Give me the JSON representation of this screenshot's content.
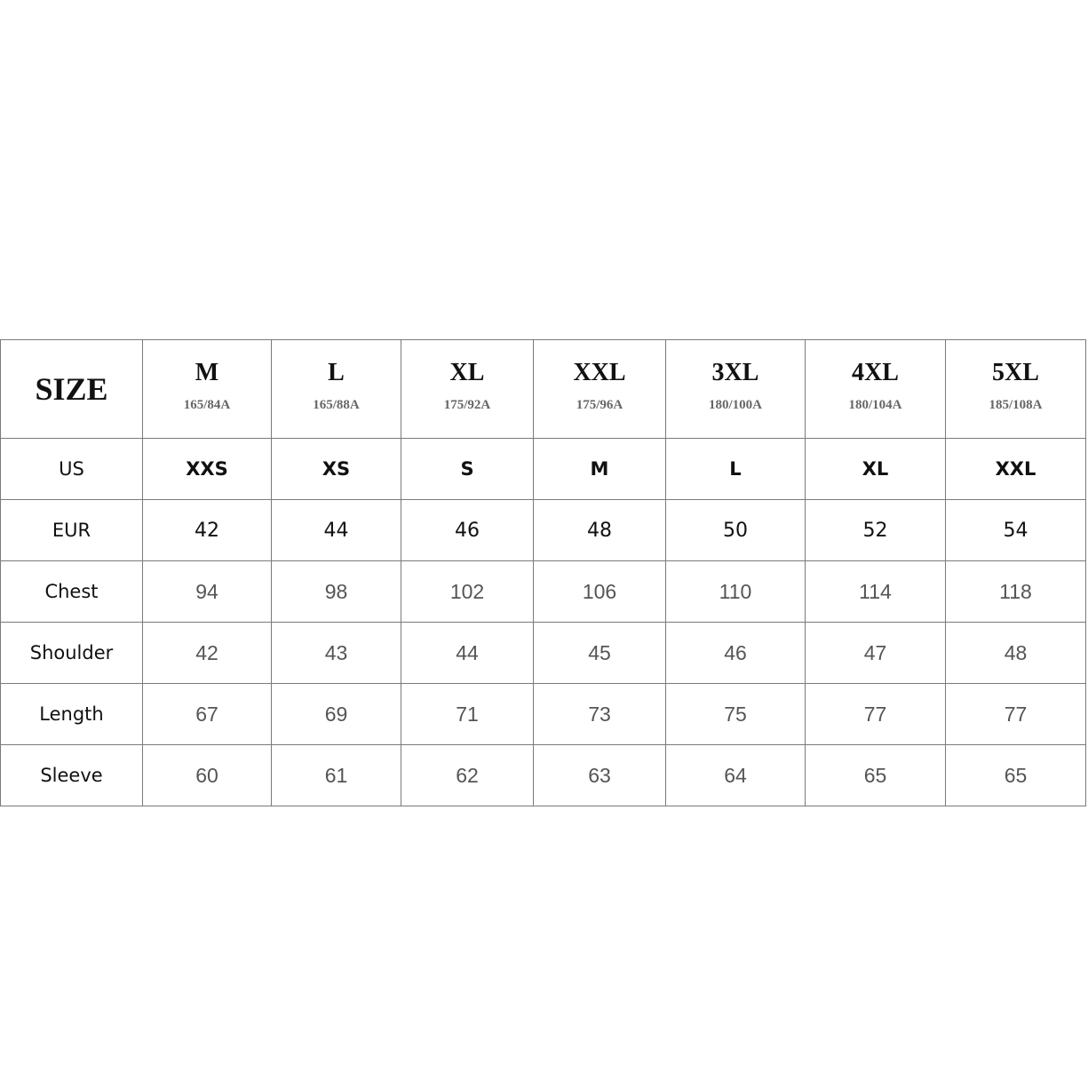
{
  "table": {
    "corner_label": "SIZE",
    "columns": [
      {
        "size": "M",
        "code": "165/84A"
      },
      {
        "size": "L",
        "code": "165/88A"
      },
      {
        "size": "XL",
        "code": "175/92A"
      },
      {
        "size": "XXL",
        "code": "175/96A"
      },
      {
        "size": "3XL",
        "code": "180/100A"
      },
      {
        "size": "4XL",
        "code": "180/104A"
      },
      {
        "size": "5XL",
        "code": "185/108A"
      }
    ],
    "rows": [
      {
        "label": "US",
        "style": "bold",
        "values": [
          "XXS",
          "XS",
          "S",
          "M",
          "L",
          "XL",
          "XXL"
        ]
      },
      {
        "label": "EUR",
        "style": "eur",
        "values": [
          "42",
          "44",
          "46",
          "48",
          "50",
          "52",
          "54"
        ]
      },
      {
        "label": "Chest",
        "style": "val",
        "values": [
          "94",
          "98",
          "102",
          "106",
          "110",
          "114",
          "118"
        ]
      },
      {
        "label": "Shoulder",
        "style": "val",
        "values": [
          "42",
          "43",
          "44",
          "45",
          "46",
          "47",
          "48"
        ]
      },
      {
        "label": "Length",
        "style": "val",
        "values": [
          "67",
          "69",
          "71",
          "73",
          "75",
          "77",
          "77"
        ]
      },
      {
        "label": "Sleeve",
        "style": "val",
        "values": [
          "60",
          "61",
          "62",
          "63",
          "64",
          "65",
          "65"
        ]
      }
    ]
  }
}
